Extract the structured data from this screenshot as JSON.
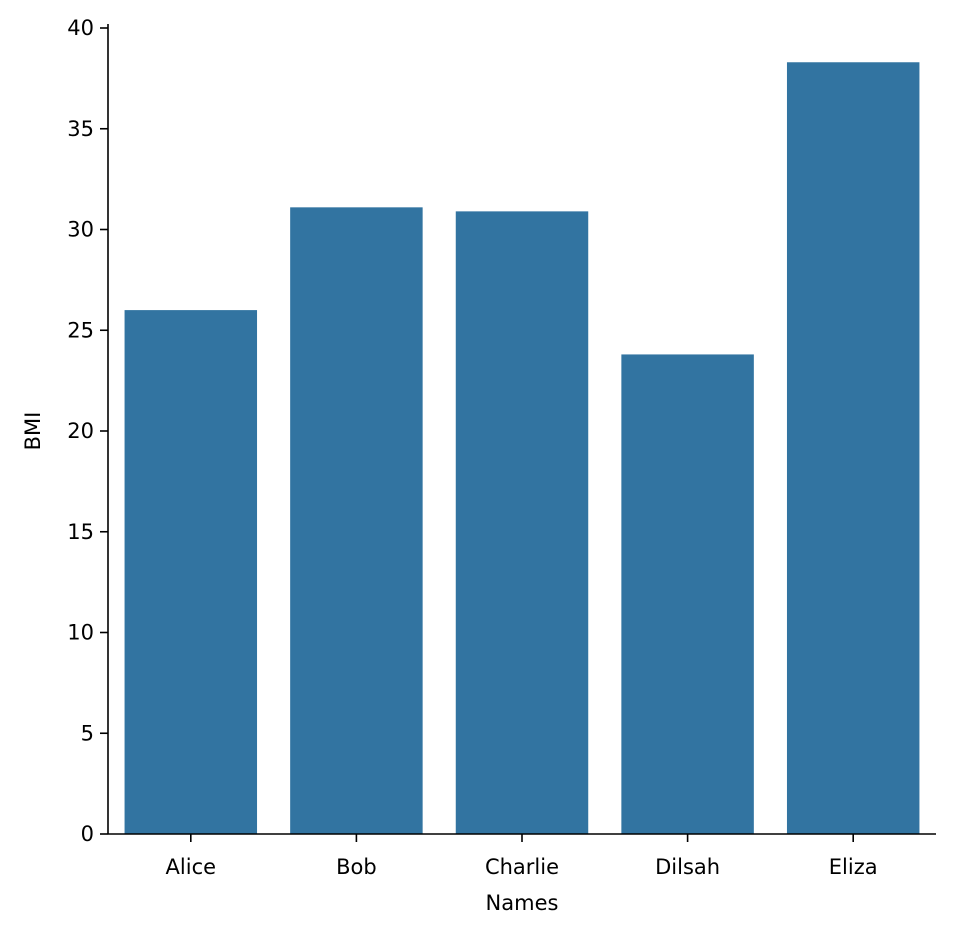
{
  "chart_data": {
    "type": "bar",
    "categories": [
      "Alice",
      "Bob",
      "Charlie",
      "Dilsah",
      "Eliza"
    ],
    "values": [
      26.0,
      31.1,
      30.9,
      23.8,
      38.3
    ],
    "xlabel": "Names",
    "ylabel": "BMI",
    "ylim": [
      0,
      40
    ],
    "yticks": [
      0,
      5,
      10,
      15,
      20,
      25,
      30,
      35,
      40
    ],
    "grid": false,
    "bar_color": "#3274a1"
  }
}
